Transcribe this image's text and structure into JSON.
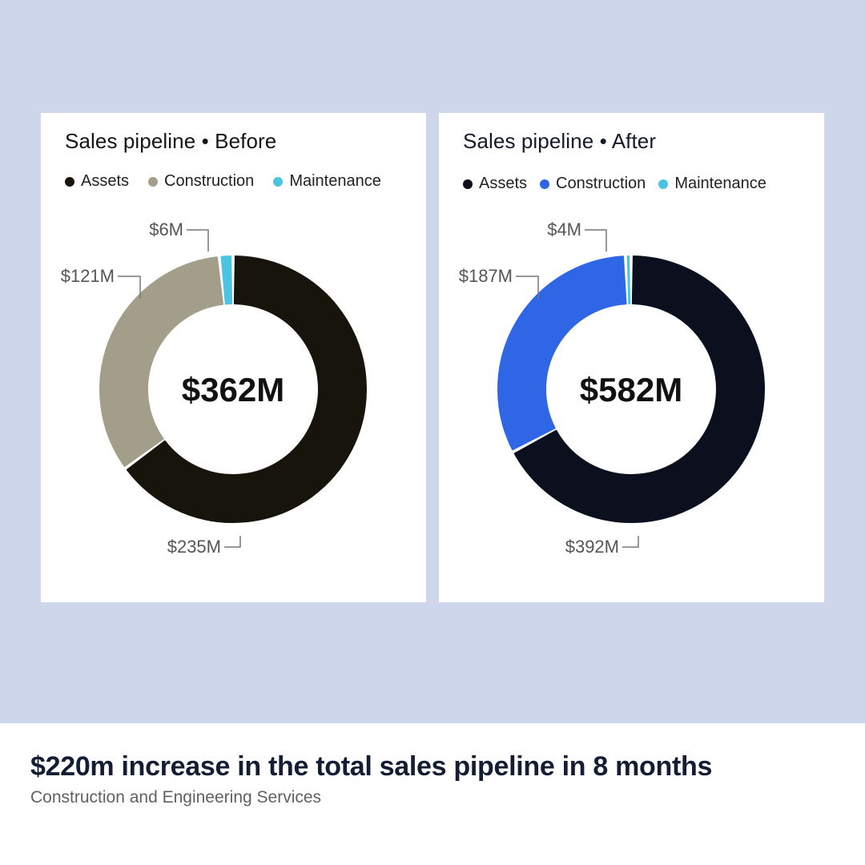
{
  "chart_data": [
    {
      "type": "pie",
      "variant": "donut",
      "title": "Sales pipeline • Before",
      "center_label": "$362M",
      "total": 362,
      "unit": "$M",
      "legend": [
        "Assets",
        "Construction",
        "Maintenance"
      ],
      "legend_placement": "top-left",
      "slices": [
        {
          "name": "Assets",
          "value": 235,
          "label": "$235M",
          "color": "#17140c"
        },
        {
          "name": "Construction",
          "value": 121,
          "label": "$121M",
          "color": "#a39e89"
        },
        {
          "name": "Maintenance",
          "value": 6,
          "label": "$6M",
          "color": "#4cc3e1"
        }
      ]
    },
    {
      "type": "pie",
      "variant": "donut",
      "title": "Sales pipeline • After",
      "center_label": "$582M",
      "total": 582,
      "unit": "$M",
      "legend": [
        "Assets",
        "Construction",
        "Maintenance"
      ],
      "legend_placement": "top-left",
      "slices": [
        {
          "name": "Assets",
          "value": 392,
          "label": "$392M",
          "color": "#0b0f1e"
        },
        {
          "name": "Construction",
          "value": 187,
          "label": "$187M",
          "color": "#2f66e6"
        },
        {
          "name": "Maintenance",
          "value": 4,
          "label": "$4M",
          "color": "#4cc3e1"
        }
      ]
    }
  ],
  "footer": {
    "headline": "$220m increase in the total sales pipeline in 8 months",
    "subtitle": "Construction and Engineering Services"
  },
  "colors": {
    "background": "#cdd6ea",
    "card": "#ffffff",
    "headline": "#141d33",
    "label": "#555555"
  }
}
